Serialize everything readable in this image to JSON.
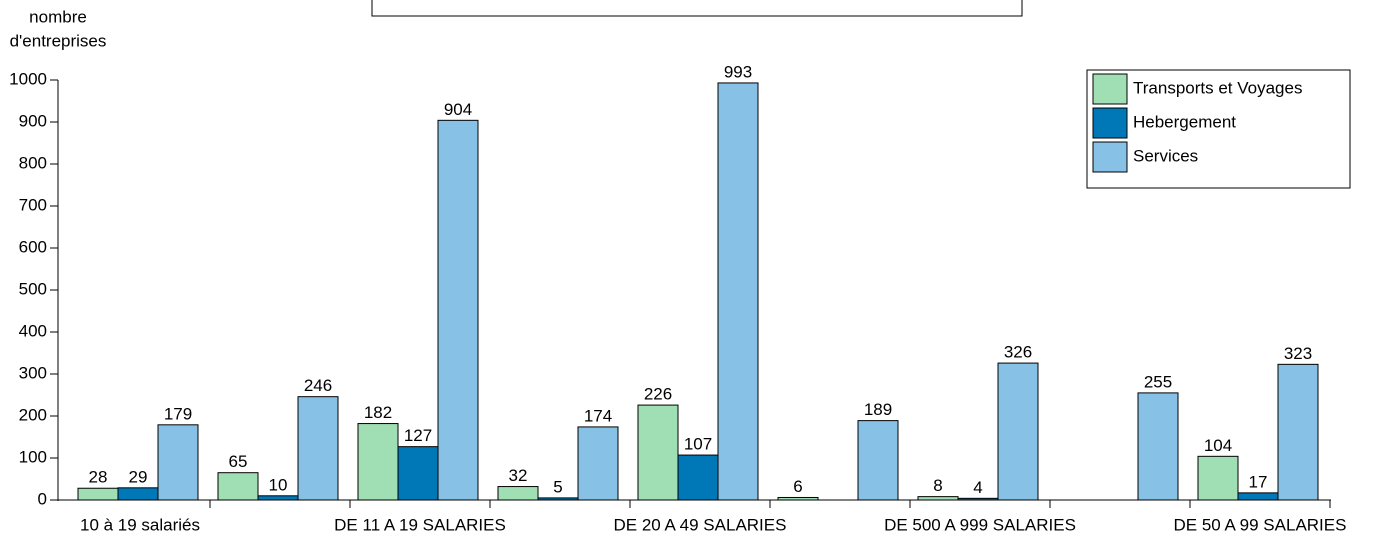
{
  "chart_data": {
    "type": "bar",
    "ylabel": [
      "nombre",
      "d'entreprises"
    ],
    "categories": [
      "10 à 19 salariés",
      null,
      "DE 11 A 19 SALARIES",
      null,
      "DE 20 A 49 SALARIES",
      null,
      "DE 500 A 999 SALARIES",
      null,
      "DE 50 A 99 SALARIES"
    ],
    "series": [
      {
        "name": "Transports et Voyages",
        "color": "#a0dfb4",
        "values": [
          28,
          65,
          182,
          32,
          226,
          6,
          8,
          null,
          104
        ]
      },
      {
        "name": "Hebergement",
        "color": "#0077b6",
        "values": [
          29,
          10,
          127,
          5,
          107,
          null,
          4,
          null,
          17
        ]
      },
      {
        "name": "Services",
        "color": "#87c1e6",
        "values": [
          179,
          246,
          904,
          174,
          993,
          189,
          326,
          255,
          323
        ]
      }
    ],
    "ylim": [
      0,
      1000
    ],
    "yticks": [
      0,
      100,
      200,
      300,
      400,
      500,
      600,
      700,
      800,
      900,
      1000
    ],
    "grid": false,
    "legend": "upper right"
  }
}
